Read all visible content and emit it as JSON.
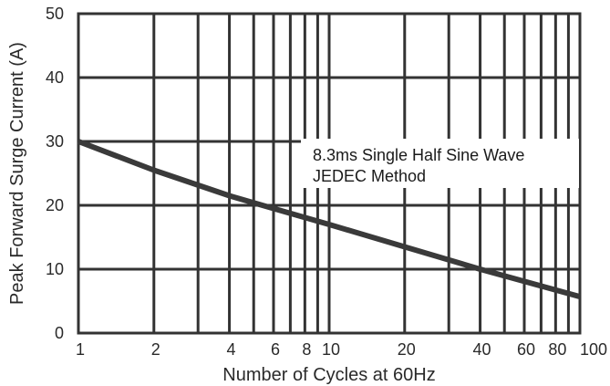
{
  "chart_data": {
    "type": "line",
    "title": "",
    "xlabel": "Number of Cycles at 60Hz",
    "ylabel": "Peak Forward Surge Current (A)",
    "x_scale": "log",
    "xlim": [
      1,
      100
    ],
    "ylim": [
      0,
      50
    ],
    "x_ticks": [
      1,
      2,
      4,
      6,
      8,
      10,
      20,
      40,
      60,
      80,
      100
    ],
    "x_tick_labels": [
      "1",
      "2",
      "4",
      "6",
      "8",
      "10",
      "20",
      "40",
      "60",
      "80",
      "100"
    ],
    "x_gridlines": [
      1,
      2,
      3,
      4,
      5,
      6,
      7,
      8,
      9,
      10,
      20,
      30,
      40,
      50,
      60,
      70,
      80,
      90,
      100
    ],
    "y_ticks": [
      0,
      10,
      20,
      30,
      40,
      50
    ],
    "y_tick_labels": [
      "0",
      "10",
      "20",
      "30",
      "40",
      "50"
    ],
    "grid": true,
    "annotation": [
      "8.3ms Single Half Sine Wave",
      "JEDEC Method"
    ],
    "series": [
      {
        "color": "#3a3a3a",
        "x": [
          1,
          2,
          4,
          6,
          10,
          20,
          40,
          100
        ],
        "y": [
          30,
          25.5,
          21.5,
          19.5,
          17,
          13.5,
          10,
          5.7
        ]
      }
    ]
  }
}
